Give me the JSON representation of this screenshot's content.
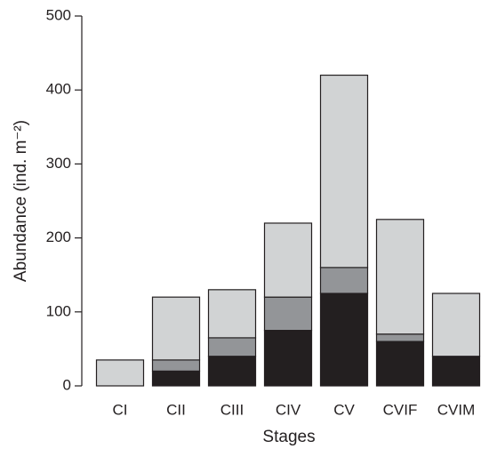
{
  "chart_data": {
    "type": "stacked_bar",
    "xlabel": "Stages",
    "ylabel": "Abundance (ind. m⁻²)",
    "categories": [
      "CI",
      "CII",
      "CIII",
      "CIV",
      "CV",
      "CVIF",
      "CVIM"
    ],
    "series": [
      {
        "color": "#231f20",
        "values": [
          0,
          20,
          40,
          75,
          125,
          60,
          40
        ]
      },
      {
        "color": "#939598",
        "values": [
          0,
          15,
          25,
          45,
          35,
          10,
          0
        ]
      },
      {
        "color": "#d1d3d4",
        "values": [
          35,
          85,
          65,
          100,
          260,
          155,
          85
        ]
      }
    ],
    "ylim": [
      0,
      500
    ],
    "yticks": [
      0,
      100,
      200,
      300,
      400,
      500
    ]
  }
}
